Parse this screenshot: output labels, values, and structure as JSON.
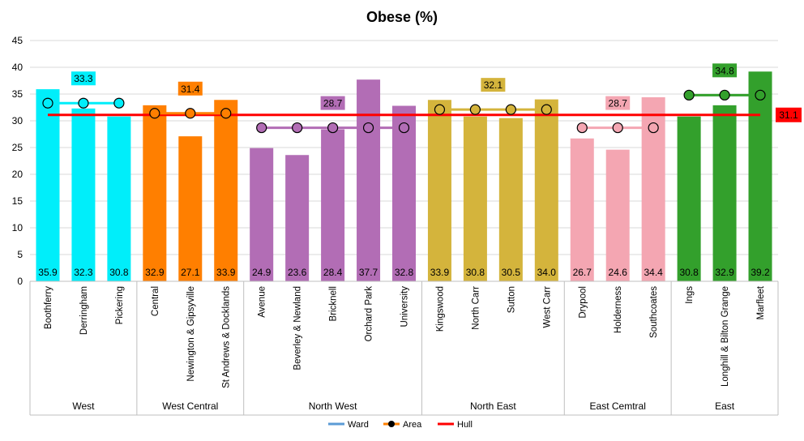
{
  "chart_data": {
    "type": "bar",
    "title": "Obese (%)",
    "xlabel": "",
    "ylabel": "",
    "ylim": [
      0,
      45
    ],
    "yticks": [
      "0",
      "5",
      "10",
      "15",
      "20",
      "25",
      "30",
      "35",
      "40",
      "45"
    ],
    "grid": true,
    "legend_position": "bottom",
    "groups": [
      {
        "name": "West",
        "color": "#00eefa",
        "area_value": 33.3,
        "area_label": "33.3",
        "wards": [
          "Boothferry",
          "Derringham",
          "Pickering"
        ],
        "values": [
          35.9,
          32.3,
          30.8
        ],
        "labels": [
          "35.9",
          "32.3",
          "30.8"
        ]
      },
      {
        "name": "West Central",
        "color": "#ff7f00",
        "area_value": 31.4,
        "area_label": "31.4",
        "wards": [
          "Central",
          "Newington & Gipsyville",
          "St Andrews & Docklands"
        ],
        "values": [
          32.9,
          27.1,
          33.9
        ],
        "labels": [
          "32.9",
          "27.1",
          "33.9"
        ]
      },
      {
        "name": "North West",
        "color": "#b26db5",
        "area_value": 28.7,
        "area_label": "28.7",
        "wards": [
          "Avenue",
          "Beverley & Newland",
          "Bricknell",
          "Orchard Park",
          "University"
        ],
        "values": [
          24.9,
          23.6,
          28.4,
          37.7,
          32.8
        ],
        "labels": [
          "24.9",
          "23.6",
          "28.4",
          "37.7",
          "32.8"
        ]
      },
      {
        "name": "North East",
        "color": "#d4b43c",
        "area_value": 32.1,
        "area_label": "32.1",
        "wards": [
          "Kingswood",
          "North Carr",
          "Sutton",
          "West Carr"
        ],
        "values": [
          33.9,
          30.8,
          30.5,
          34.0
        ],
        "labels": [
          "33.9",
          "30.8",
          "30.5",
          "34.0"
        ]
      },
      {
        "name": "East Cemtral",
        "color": "#f4a6b2",
        "area_value": 28.7,
        "area_label": "28.7",
        "wards": [
          "Drypool",
          "Holderness",
          "Southcoates"
        ],
        "values": [
          26.7,
          24.6,
          34.4
        ],
        "labels": [
          "26.7",
          "24.6",
          "34.4"
        ]
      },
      {
        "name": "East",
        "color": "#33a02c",
        "area_value": 34.8,
        "area_label": "34.8",
        "wards": [
          "Ings",
          "Longhill & Bilton Grange",
          "Marfleet"
        ],
        "values": [
          30.8,
          32.9,
          39.2
        ],
        "labels": [
          "30.8",
          "32.9",
          "39.2"
        ]
      }
    ],
    "hull_value": 31.1,
    "hull_label": "31.1",
    "hull_color": "#ff0000",
    "legend": [
      {
        "name": "Ward",
        "color": "#5b9bd5",
        "marker": "none"
      },
      {
        "name": "Area",
        "color": "#ff7f00",
        "marker": "circle"
      },
      {
        "name": "Hull",
        "color": "#ff0000",
        "marker": "none"
      }
    ]
  }
}
